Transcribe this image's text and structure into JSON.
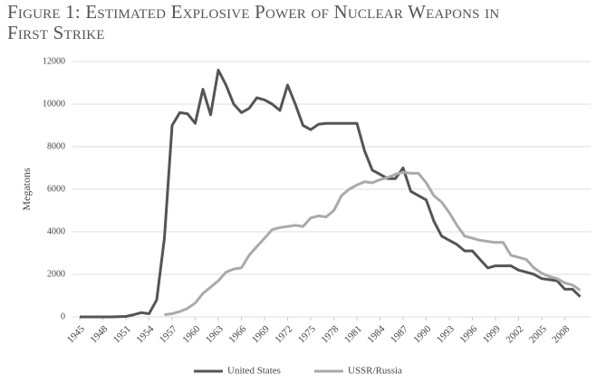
{
  "chart_data": {
    "type": "line",
    "title": "Figure 1: Estimated Explosive Power of Nuclear Weapons in First Strike",
    "y_label": "Megatons",
    "x": [
      1945,
      1946,
      1947,
      1948,
      1949,
      1950,
      1951,
      1952,
      1953,
      1954,
      1955,
      1956,
      1957,
      1958,
      1959,
      1960,
      1961,
      1962,
      1963,
      1964,
      1965,
      1966,
      1967,
      1968,
      1969,
      1970,
      1971,
      1972,
      1973,
      1974,
      1975,
      1976,
      1977,
      1978,
      1979,
      1980,
      1981,
      1982,
      1983,
      1984,
      1985,
      1986,
      1987,
      1988,
      1989,
      1990,
      1991,
      1992,
      1993,
      1994,
      1995,
      1996,
      1997,
      1998,
      1999,
      2000,
      2001,
      2002,
      2003,
      2004,
      2005,
      2006,
      2007,
      2008,
      2009,
      2010
    ],
    "series": [
      {
        "name": "United States",
        "color": "#555555",
        "values": [
          0,
          0,
          0,
          0,
          0,
          10,
          20,
          100,
          200,
          150,
          800,
          3700,
          9000,
          9600,
          9550,
          9100,
          10700,
          9500,
          11600,
          10900,
          10000,
          9600,
          9800,
          10300,
          10200,
          10000,
          9700,
          10900,
          10000,
          9000,
          8800,
          9050,
          9100,
          9100,
          9100,
          9100,
          9100,
          7800,
          6900,
          6700,
          6500,
          6500,
          7000,
          5900,
          5700,
          5500,
          4500,
          3800,
          3600,
          3400,
          3100,
          3100,
          2700,
          2300,
          2400,
          2400,
          2400,
          2200,
          2100,
          2000,
          1800,
          1750,
          1700,
          1300,
          1300,
          950
        ]
      },
      {
        "name": "USSR/Russia",
        "color": "#aaaaaa",
        "values": [
          null,
          null,
          null,
          null,
          null,
          null,
          null,
          null,
          null,
          null,
          null,
          100,
          150,
          250,
          400,
          650,
          1100,
          1400,
          1700,
          2100,
          2250,
          2300,
          2900,
          3300,
          3700,
          4100,
          4200,
          4250,
          4300,
          4250,
          4650,
          4750,
          4700,
          5000,
          5700,
          6000,
          6200,
          6350,
          6300,
          6450,
          6550,
          6700,
          6800,
          6750,
          6750,
          6300,
          5700,
          5400,
          4900,
          4300,
          3800,
          3700,
          3600,
          3550,
          3500,
          3500,
          2900,
          2800,
          2700,
          2300,
          2050,
          1900,
          1800,
          1600,
          1500,
          1250
        ]
      }
    ],
    "xlim": [
      1945,
      2011
    ],
    "xticks": [
      1945,
      1948,
      1951,
      1954,
      1957,
      1960,
      1963,
      1966,
      1969,
      1972,
      1975,
      1978,
      1981,
      1984,
      1987,
      1990,
      1993,
      1996,
      1999,
      2002,
      2005,
      2008
    ],
    "ylim": [
      0,
      12000
    ],
    "yticks": [
      0,
      2000,
      4000,
      6000,
      8000,
      10000,
      12000
    ],
    "grid": true
  }
}
